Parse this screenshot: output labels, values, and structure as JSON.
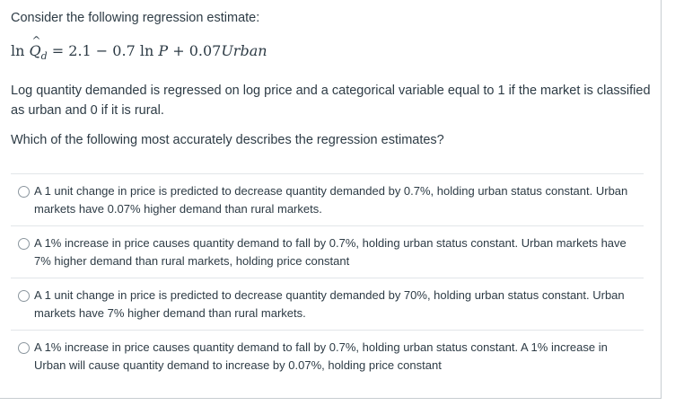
{
  "question": {
    "intro": "Consider the following regression estimate:",
    "equation": {
      "lhs_ln": "ln",
      "lhs_var": "Q",
      "lhs_sub": "d",
      "rhs": "= 2.1 − 0.7 ln ",
      "rhs_p": "P",
      "rhs_plus": " + 0.07",
      "rhs_urban": "Urban"
    },
    "description": "Log quantity demanded is regressed on log price and a categorical variable equal to 1 if the market is classified as urban and 0 if it is rural.",
    "prompt": "Which of the following most accurately describes the regression estimates?"
  },
  "answers": [
    {
      "label": "A 1 unit change in price is predicted to decrease quantity demanded by 0.7%, holding urban status constant. Urban markets have 0.07% higher demand than rural markets.",
      "selected": false
    },
    {
      "label": "A 1% increase in price causes quantity demand to fall by 0.7%, holding urban status constant. Urban markets have 7% higher demand than rural markets, holding price constant",
      "selected": false
    },
    {
      "label": "A 1 unit change in price is predicted to decrease quantity demanded by 70%, holding urban status constant. Urban markets have 7% higher demand than rural markets.",
      "selected": false
    },
    {
      "label": "A 1% increase in price causes quantity demand to fall by 0.7%, holding urban status constant. A 1% increase in Urban will cause quantity demand to increase by 0.07%, holding price constant",
      "selected": false
    }
  ]
}
